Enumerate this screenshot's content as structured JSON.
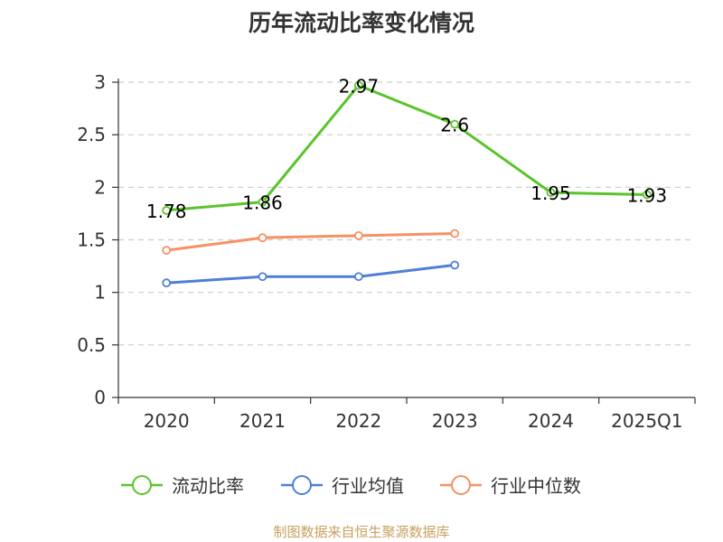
{
  "chart_data": {
    "type": "line",
    "title": "历年流动比率变化情况",
    "categories": [
      "2020",
      "2021",
      "2022",
      "2023",
      "2024",
      "2025Q1"
    ],
    "ylim": [
      0,
      3
    ],
    "yticks": [
      "0",
      "0.5",
      "1",
      "1.5",
      "2",
      "2.5",
      "3"
    ],
    "ytick_values": [
      0,
      0.5,
      1,
      1.5,
      2,
      2.5,
      3
    ],
    "grid": true,
    "legend_position": "bottom",
    "series": [
      {
        "name": "流动比率",
        "color": "#5bc42b",
        "values": [
          1.78,
          1.86,
          2.97,
          2.6,
          1.95,
          1.93
        ],
        "labels": [
          "1.78",
          "1.86",
          "2.97",
          "2.6",
          "1.95",
          "1.93"
        ]
      },
      {
        "name": "行业均值",
        "color": "#4f7fd8",
        "values": [
          1.09,
          1.15,
          1.15,
          1.26,
          null,
          null
        ]
      },
      {
        "name": "行业中位数",
        "color": "#f69163",
        "values": [
          1.4,
          1.52,
          1.54,
          1.56,
          null,
          null
        ]
      }
    ]
  },
  "footer": {
    "source": "制图数据来自恒生聚源数据库",
    "source_color": "#c8a060"
  }
}
